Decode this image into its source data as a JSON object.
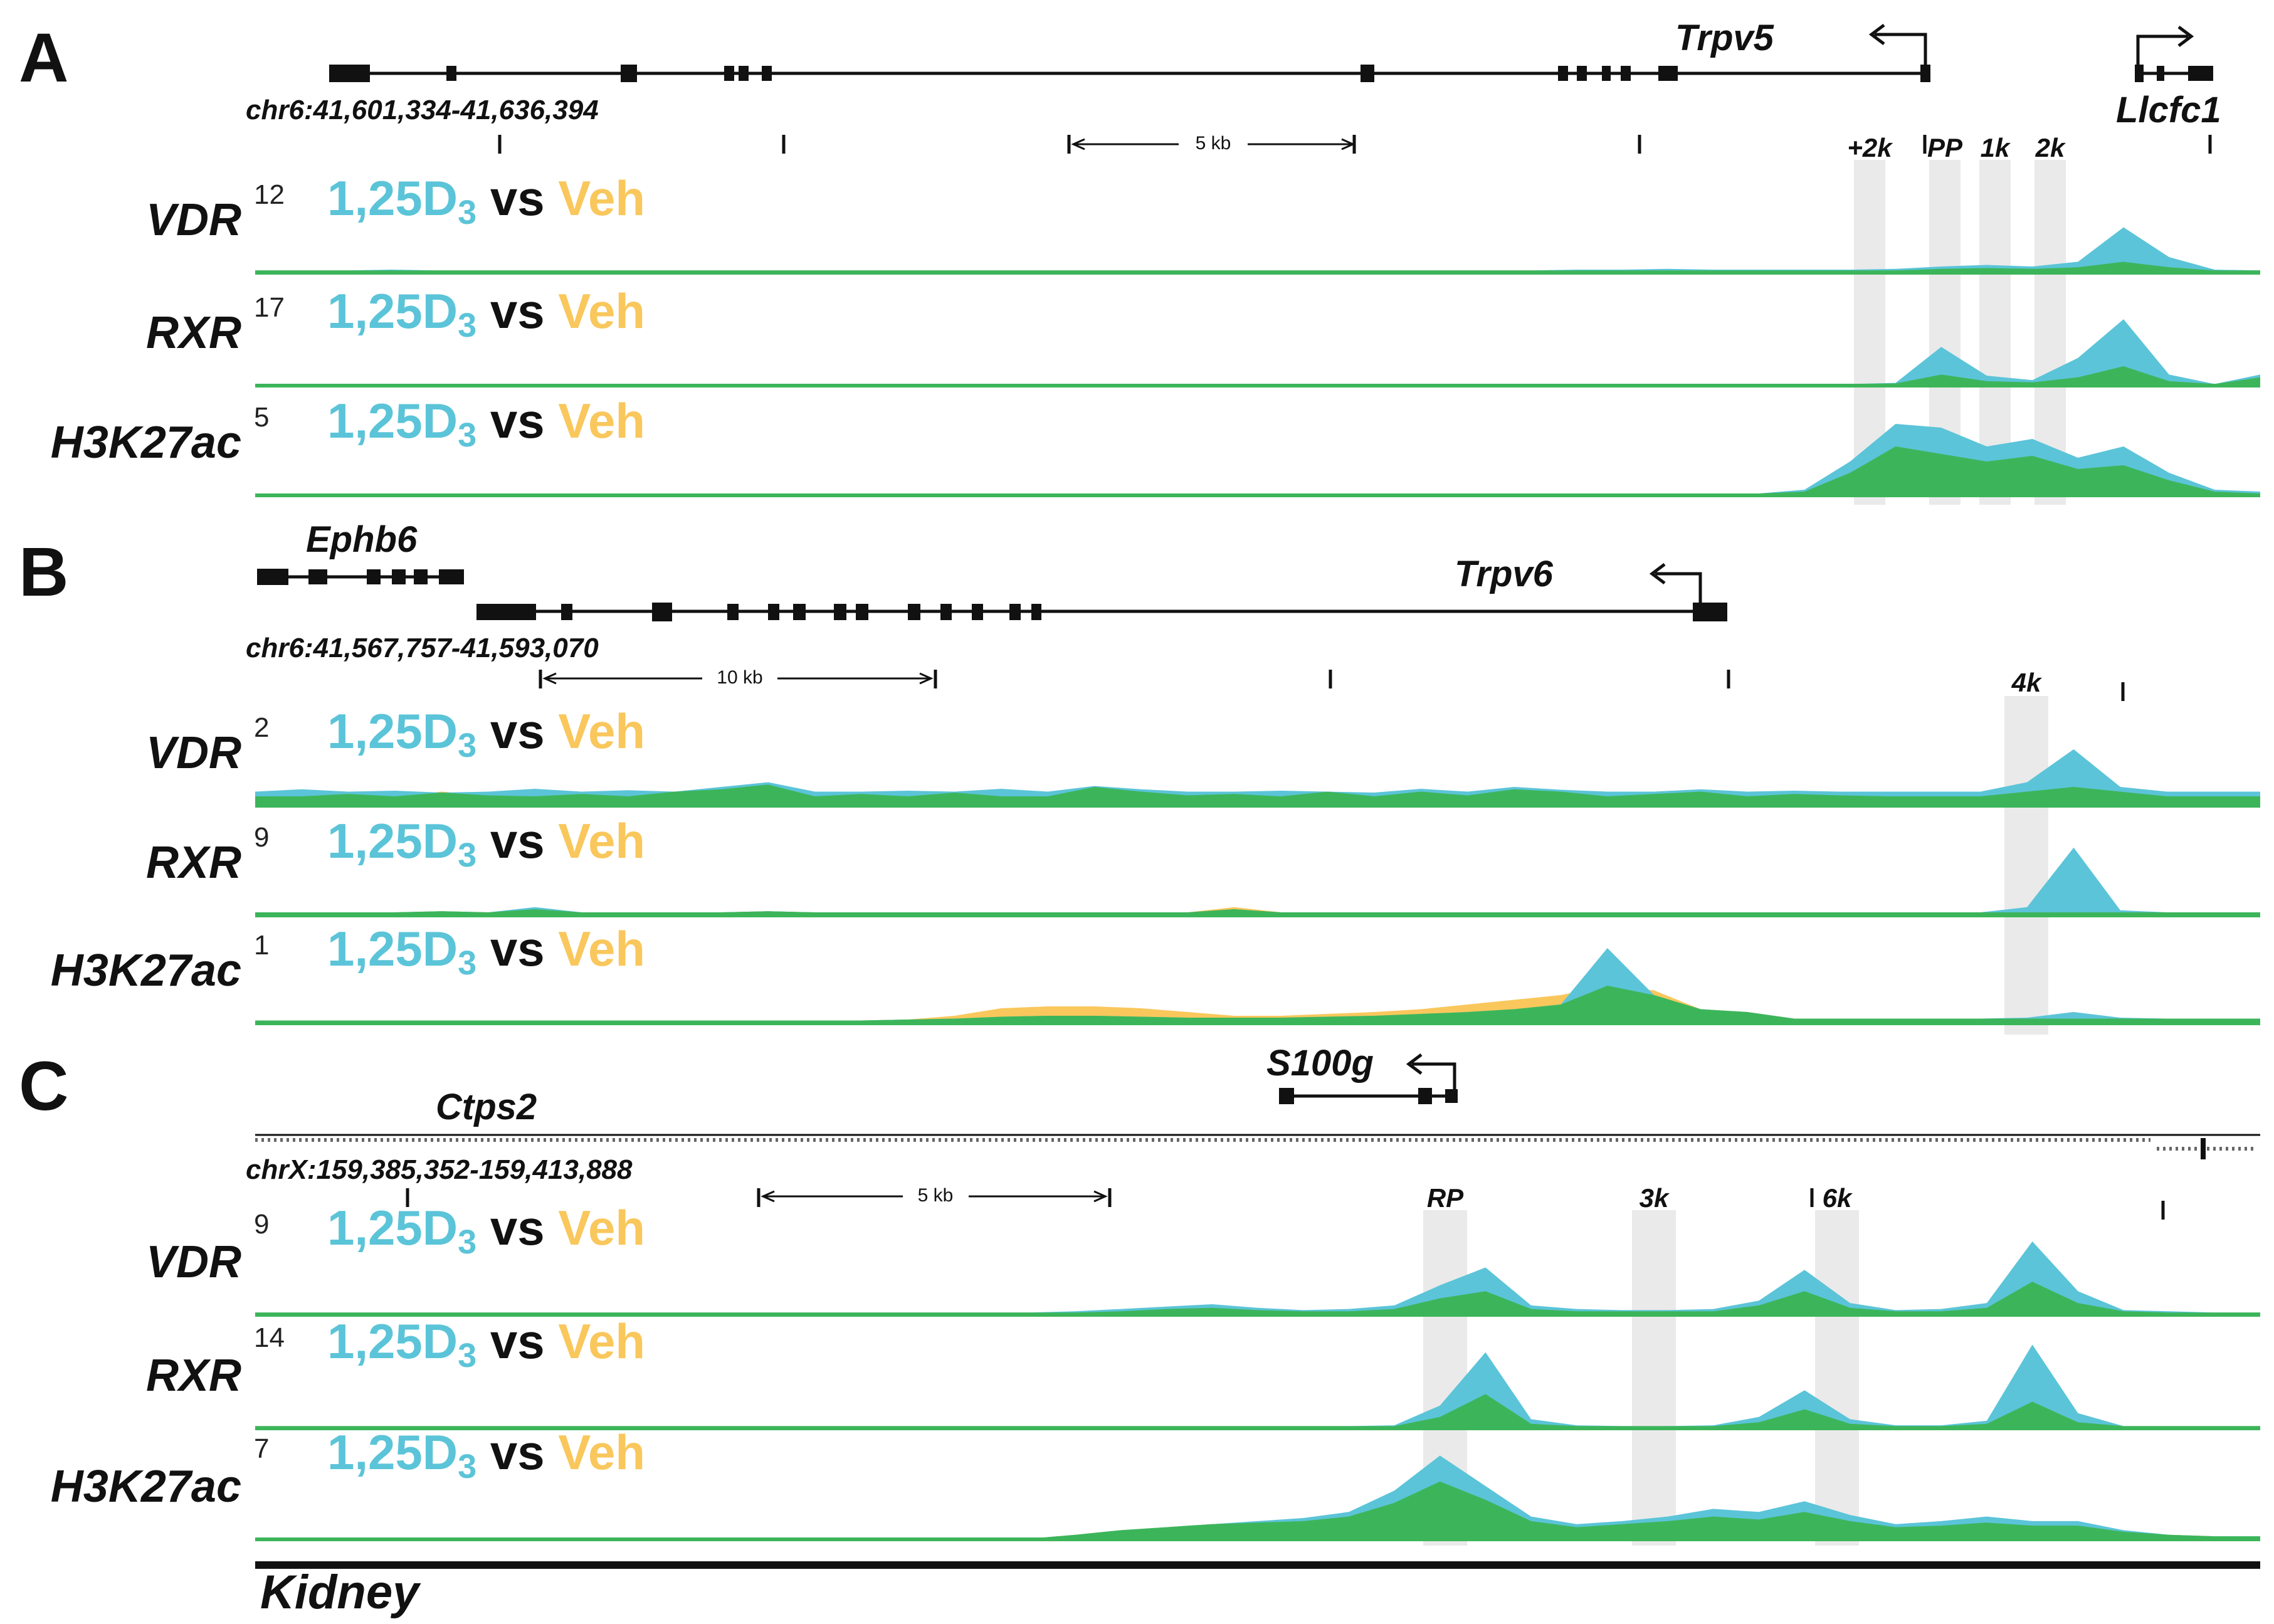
{
  "chart_data": [
    {
      "type": "area",
      "panel": "A",
      "coordinates": "chr6:41,601,334-41,636,394",
      "scale_bar": "5 kb",
      "genes": [
        {
          "name": "Trpv5",
          "strand": "-"
        },
        {
          "name": "Llcfc1",
          "strand": "+"
        }
      ],
      "regions": [
        "+2k",
        "PP",
        "1k",
        "2k"
      ],
      "tracks": [
        {
          "name": "VDR",
          "ymax": "12",
          "condition_a": "1,25D",
          "condition_b": "Veh",
          "treated": [
            0.3,
            0.3,
            0.3,
            0.4,
            0.3,
            0.3,
            0.3,
            0.3,
            0.3,
            0.3,
            0.3,
            0.3,
            0.3,
            0.3,
            0.3,
            0.3,
            0.3,
            0.3,
            0.3,
            0.3,
            0.3,
            0.3,
            0.3,
            0.3,
            0.3,
            0.3,
            0.3,
            0.3,
            0.3,
            0.4,
            0.4,
            0.5,
            0.4,
            0.4,
            0.4,
            0.4,
            0.5,
            0.8,
            1.0,
            0.8,
            1.4,
            5.8,
            2.0,
            0.4,
            0.3
          ],
          "vehicle": [
            0.3,
            0.3,
            0.3,
            0.3,
            0.3,
            0.3,
            0.3,
            0.3,
            0.3,
            0.3,
            0.3,
            0.3,
            0.3,
            0.3,
            0.3,
            0.3,
            0.3,
            0.3,
            0.3,
            0.3,
            0.3,
            0.3,
            0.3,
            0.3,
            0.3,
            0.3,
            0.3,
            0.3,
            0.3,
            0.3,
            0.3,
            0.3,
            0.3,
            0.3,
            0.3,
            0.3,
            0.3,
            0.5,
            0.6,
            0.5,
            0.7,
            1.4,
            0.7,
            0.3,
            0.3
          ]
        },
        {
          "name": "RXR",
          "ymax": "17",
          "condition_a": "1,25D",
          "condition_b": "Veh",
          "treated": [
            0.3,
            0.3,
            0.3,
            0.3,
            0.3,
            0.3,
            0.3,
            0.3,
            0.3,
            0.3,
            0.3,
            0.3,
            0.3,
            0.3,
            0.3,
            0.3,
            0.3,
            0.3,
            0.3,
            0.3,
            0.3,
            0.3,
            0.3,
            0.3,
            0.3,
            0.3,
            0.3,
            0.3,
            0.3,
            0.3,
            0.3,
            0.3,
            0.3,
            0.3,
            0.3,
            0.3,
            0.5,
            7.0,
            1.8,
            1.0,
            5.0,
            12.0,
            2.0,
            0.3,
            2.0
          ],
          "vehicle": [
            0.3,
            0.3,
            0.3,
            0.3,
            0.3,
            0.3,
            0.3,
            0.3,
            0.3,
            0.3,
            0.3,
            0.3,
            0.3,
            0.3,
            0.3,
            0.3,
            0.3,
            0.3,
            0.3,
            0.3,
            0.3,
            0.3,
            0.3,
            0.3,
            0.3,
            0.3,
            0.3,
            0.3,
            0.3,
            0.3,
            0.3,
            0.3,
            0.3,
            0.3,
            0.3,
            0.3,
            0.4,
            2.0,
            0.8,
            0.6,
            1.5,
            3.5,
            0.8,
            0.3,
            1.5
          ]
        },
        {
          "name": "H3K27ac",
          "ymax": "5",
          "condition_a": "1,25D",
          "condition_b": "Veh",
          "treated": [
            0.05,
            0.05,
            0.05,
            0.05,
            0.05,
            0.05,
            0.05,
            0.05,
            0.05,
            0.05,
            0.05,
            0.05,
            0.05,
            0.05,
            0.05,
            0.05,
            0.05,
            0.05,
            0.05,
            0.1,
            0.1,
            0.1,
            0.1,
            0.1,
            0.1,
            0.1,
            0.1,
            0.1,
            0.1,
            0.1,
            0.1,
            0.1,
            0.1,
            0.1,
            0.3,
            1.8,
            3.8,
            3.6,
            2.6,
            3.0,
            2.0,
            2.6,
            1.2,
            0.3,
            0.2
          ],
          "vehicle": [
            0.05,
            0.05,
            0.05,
            0.05,
            0.05,
            0.05,
            0.05,
            0.05,
            0.05,
            0.05,
            0.05,
            0.05,
            0.05,
            0.05,
            0.05,
            0.05,
            0.05,
            0.05,
            0.05,
            0.1,
            0.1,
            0.1,
            0.1,
            0.1,
            0.1,
            0.1,
            0.1,
            0.1,
            0.1,
            0.1,
            0.1,
            0.1,
            0.1,
            0.1,
            0.2,
            1.2,
            2.6,
            2.2,
            1.8,
            2.1,
            1.4,
            1.6,
            0.8,
            0.2,
            0.1
          ]
        }
      ]
    },
    {
      "type": "area",
      "panel": "B",
      "coordinates": "chr6:41,567,757-41,593,070",
      "scale_bar": "10 kb",
      "genes": [
        {
          "name": "Ephb6",
          "strand": "-"
        },
        {
          "name": "Trpv6",
          "strand": "-"
        }
      ],
      "regions": [
        "4k"
      ],
      "tracks": [
        {
          "name": "VDR",
          "ymax": "2",
          "condition_a": "1,25D",
          "condition_b": "Veh",
          "treated": [
            0.3,
            0.35,
            0.3,
            0.32,
            0.28,
            0.3,
            0.36,
            0.3,
            0.33,
            0.3,
            0.4,
            0.5,
            0.3,
            0.3,
            0.32,
            0.3,
            0.36,
            0.3,
            0.42,
            0.35,
            0.3,
            0.3,
            0.32,
            0.3,
            0.28,
            0.36,
            0.3,
            0.4,
            0.34,
            0.3,
            0.3,
            0.35,
            0.3,
            0.32,
            0.3,
            0.3,
            0.3,
            0.3,
            0.5,
            1.2,
            0.4,
            0.3,
            0.3,
            0.3
          ],
          "vehicle": [
            0.2,
            0.2,
            0.25,
            0.2,
            0.3,
            0.22,
            0.2,
            0.25,
            0.2,
            0.3,
            0.35,
            0.45,
            0.2,
            0.25,
            0.2,
            0.28,
            0.2,
            0.2,
            0.4,
            0.3,
            0.22,
            0.25,
            0.2,
            0.3,
            0.2,
            0.3,
            0.22,
            0.35,
            0.3,
            0.2,
            0.25,
            0.3,
            0.2,
            0.25,
            0.22,
            0.2,
            0.2,
            0.2,
            0.3,
            0.4,
            0.3,
            0.2,
            0.2,
            0.2
          ]
        },
        {
          "name": "RXR",
          "ymax": "9",
          "condition_a": "1,25D",
          "condition_b": "Veh",
          "treated": [
            0.3,
            0.3,
            0.3,
            0.3,
            0.4,
            0.3,
            0.8,
            0.3,
            0.3,
            0.3,
            0.3,
            0.4,
            0.3,
            0.3,
            0.3,
            0.3,
            0.3,
            0.3,
            0.3,
            0.3,
            0.3,
            0.6,
            0.3,
            0.3,
            0.3,
            0.3,
            0.3,
            0.3,
            0.3,
            0.3,
            0.3,
            0.3,
            0.3,
            0.3,
            0.3,
            0.3,
            0.3,
            0.3,
            0.8,
            6.5,
            0.5,
            0.3,
            0.3,
            0.3
          ],
          "vehicle": [
            0.3,
            0.3,
            0.3,
            0.3,
            0.4,
            0.3,
            0.6,
            0.3,
            0.3,
            0.3,
            0.3,
            0.4,
            0.3,
            0.3,
            0.3,
            0.3,
            0.3,
            0.3,
            0.3,
            0.3,
            0.3,
            0.8,
            0.3,
            0.3,
            0.3,
            0.3,
            0.3,
            0.3,
            0.3,
            0.3,
            0.3,
            0.3,
            0.3,
            0.3,
            0.3,
            0.3,
            0.3,
            0.3,
            0.3,
            0.3,
            0.3,
            0.3,
            0.3,
            0.3
          ]
        },
        {
          "name": "H3K27ac",
          "ymax": "1",
          "condition_a": "1,25D",
          "condition_b": "Veh",
          "treated": [
            0.03,
            0.03,
            0.03,
            0.03,
            0.03,
            0.03,
            0.03,
            0.03,
            0.03,
            0.03,
            0.03,
            0.03,
            0.03,
            0.03,
            0.04,
            0.05,
            0.07,
            0.08,
            0.08,
            0.07,
            0.06,
            0.06,
            0.06,
            0.07,
            0.08,
            0.1,
            0.12,
            0.15,
            0.2,
            0.8,
            0.3,
            0.15,
            0.12,
            0.05,
            0.05,
            0.05,
            0.05,
            0.05,
            0.06,
            0.12,
            0.06,
            0.05,
            0.05,
            0.05
          ],
          "vehicle": [
            0.03,
            0.03,
            0.03,
            0.03,
            0.03,
            0.03,
            0.03,
            0.03,
            0.03,
            0.03,
            0.03,
            0.03,
            0.03,
            0.03,
            0.04,
            0.08,
            0.16,
            0.18,
            0.18,
            0.16,
            0.12,
            0.08,
            0.08,
            0.1,
            0.12,
            0.15,
            0.2,
            0.25,
            0.3,
            0.4,
            0.35,
            0.15,
            0.12,
            0.05,
            0.05,
            0.05,
            0.05,
            0.05,
            0.05,
            0.05,
            0.05,
            0.05,
            0.05,
            0.05
          ]
        }
      ]
    },
    {
      "type": "area",
      "panel": "C",
      "coordinates": "chrX:159,385,352-159,413,888",
      "scale_bar": "5 kb",
      "genes": [
        {
          "name": "S100g",
          "strand": "-"
        },
        {
          "name": "Ctps2",
          "strand": "+"
        }
      ],
      "regions": [
        "RP",
        "3k",
        "6k"
      ],
      "tracks": [
        {
          "name": "VDR",
          "ymax": "9",
          "condition_a": "1,25D",
          "condition_b": "Veh",
          "treated": [
            0.2,
            0.2,
            0.2,
            0.2,
            0.2,
            0.2,
            0.2,
            0.2,
            0.2,
            0.2,
            0.2,
            0.2,
            0.2,
            0.2,
            0.2,
            0.2,
            0.2,
            0.2,
            0.3,
            0.5,
            0.7,
            0.9,
            0.6,
            0.4,
            0.5,
            0.8,
            2.5,
            4.0,
            0.8,
            0.5,
            0.4,
            0.4,
            0.5,
            1.2,
            3.8,
            1.0,
            0.4,
            0.5,
            1.0,
            6.2,
            2.0,
            0.4,
            0.3,
            0.2,
            0.2
          ],
          "vehicle": [
            0.2,
            0.2,
            0.2,
            0.2,
            0.2,
            0.2,
            0.2,
            0.2,
            0.2,
            0.2,
            0.2,
            0.2,
            0.2,
            0.2,
            0.2,
            0.2,
            0.2,
            0.2,
            0.2,
            0.3,
            0.5,
            0.6,
            0.4,
            0.3,
            0.3,
            0.5,
            1.4,
            2.0,
            0.5,
            0.3,
            0.3,
            0.3,
            0.3,
            0.8,
            2.0,
            0.6,
            0.3,
            0.3,
            0.6,
            2.8,
            1.0,
            0.3,
            0.2,
            0.2,
            0.2
          ]
        },
        {
          "name": "RXR",
          "ymax": "14",
          "condition_a": "1,25D",
          "condition_b": "Veh",
          "treated": [
            0.3,
            0.3,
            0.3,
            0.3,
            0.3,
            0.3,
            0.3,
            0.3,
            0.3,
            0.3,
            0.3,
            0.3,
            0.3,
            0.3,
            0.3,
            0.3,
            0.3,
            0.3,
            0.3,
            0.3,
            0.3,
            0.3,
            0.3,
            0.3,
            0.3,
            0.4,
            3.0,
            10.0,
            1.2,
            0.4,
            0.3,
            0.3,
            0.4,
            1.5,
            5.0,
            1.2,
            0.4,
            0.4,
            1.0,
            11.0,
            2.0,
            0.3,
            0.3,
            0.3,
            0.3
          ],
          "vehicle": [
            0.3,
            0.3,
            0.3,
            0.3,
            0.3,
            0.3,
            0.3,
            0.3,
            0.3,
            0.3,
            0.3,
            0.3,
            0.3,
            0.3,
            0.3,
            0.3,
            0.3,
            0.3,
            0.3,
            0.3,
            0.3,
            0.3,
            0.3,
            0.3,
            0.3,
            0.3,
            1.5,
            4.5,
            0.6,
            0.3,
            0.3,
            0.3,
            0.3,
            0.8,
            2.5,
            0.6,
            0.3,
            0.3,
            0.6,
            3.5,
            0.8,
            0.3,
            0.3,
            0.3,
            0.3
          ]
        },
        {
          "name": "H3K27ac",
          "ymax": "7",
          "condition_a": "1,25D",
          "condition_b": "Veh",
          "treated": [
            0.1,
            0.1,
            0.1,
            0.1,
            0.1,
            0.1,
            0.1,
            0.1,
            0.1,
            0.1,
            0.1,
            0.1,
            0.1,
            0.1,
            0.05,
            0.05,
            0.05,
            0.05,
            0.3,
            0.6,
            0.8,
            1.0,
            1.2,
            1.4,
            1.8,
            3.2,
            5.5,
            3.5,
            1.5,
            1.0,
            1.2,
            1.5,
            2.0,
            1.8,
            2.5,
            1.6,
            1.0,
            1.2,
            1.5,
            1.2,
            1.2,
            0.6,
            0.3,
            0.2,
            0.2
          ],
          "vehicle": [
            0.1,
            0.1,
            0.1,
            0.1,
            0.1,
            0.1,
            0.1,
            0.1,
            0.1,
            0.1,
            0.1,
            0.1,
            0.1,
            0.1,
            0.05,
            0.05,
            0.05,
            0.05,
            0.3,
            0.6,
            0.8,
            1.0,
            1.1,
            1.2,
            1.5,
            2.4,
            3.8,
            2.6,
            1.2,
            0.8,
            1.0,
            1.2,
            1.5,
            1.3,
            1.8,
            1.2,
            0.8,
            0.9,
            1.1,
            0.9,
            0.9,
            0.5,
            0.3,
            0.2,
            0.2
          ]
        }
      ]
    }
  ],
  "tissue_label": "Kidney",
  "colors": {
    "treated": "#5bc4d8",
    "vehicle": "#f9c75c",
    "overlap": "#3cb55a",
    "highlight": "#e6e6e6",
    "text": "#111111"
  }
}
